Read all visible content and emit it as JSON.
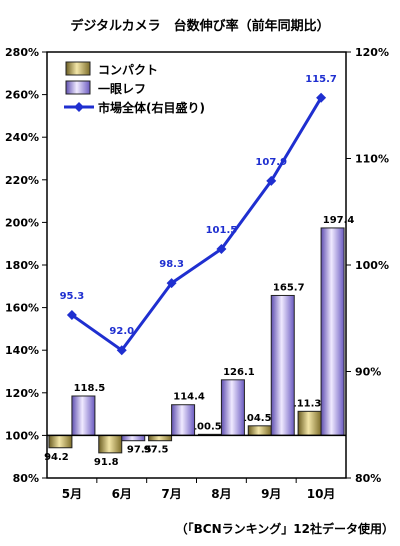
{
  "chart_data": {
    "type": "bar",
    "title": "デジタルカメラ　台数伸び率（前年同期比）",
    "source_note": "（「BCNランキング」12社データ使用）",
    "categories": [
      "5月",
      "6月",
      "7月",
      "8月",
      "9月",
      "10月"
    ],
    "left_axis": {
      "ylim": [
        80,
        280
      ],
      "ticks": [
        "80%",
        "100%",
        "120%",
        "140%",
        "160%",
        "180%",
        "200%",
        "220%",
        "240%",
        "260%",
        "280%"
      ],
      "bar_baseline": 100
    },
    "right_axis": {
      "ylim": [
        80,
        120
      ],
      "ticks": [
        "80%",
        "90%",
        "100%",
        "110%",
        "120%"
      ]
    },
    "series": [
      {
        "name": "コンパクト",
        "type": "bar",
        "axis": "left",
        "color": "#b8a44e",
        "values": [
          94.2,
          91.8,
          97.5,
          100.5,
          104.5,
          111.3
        ]
      },
      {
        "name": "一眼レフ",
        "type": "bar",
        "axis": "left",
        "color": "#a998e0",
        "values": [
          118.5,
          97.5,
          114.4,
          126.1,
          165.7,
          197.4
        ]
      },
      {
        "name": "市場全体(右目盛り)",
        "type": "line",
        "axis": "right",
        "color": "#1f2fd0",
        "values": [
          95.3,
          92.0,
          98.3,
          101.5,
          107.9,
          115.7
        ]
      }
    ],
    "legend_position": "top-left",
    "grid": false
  }
}
